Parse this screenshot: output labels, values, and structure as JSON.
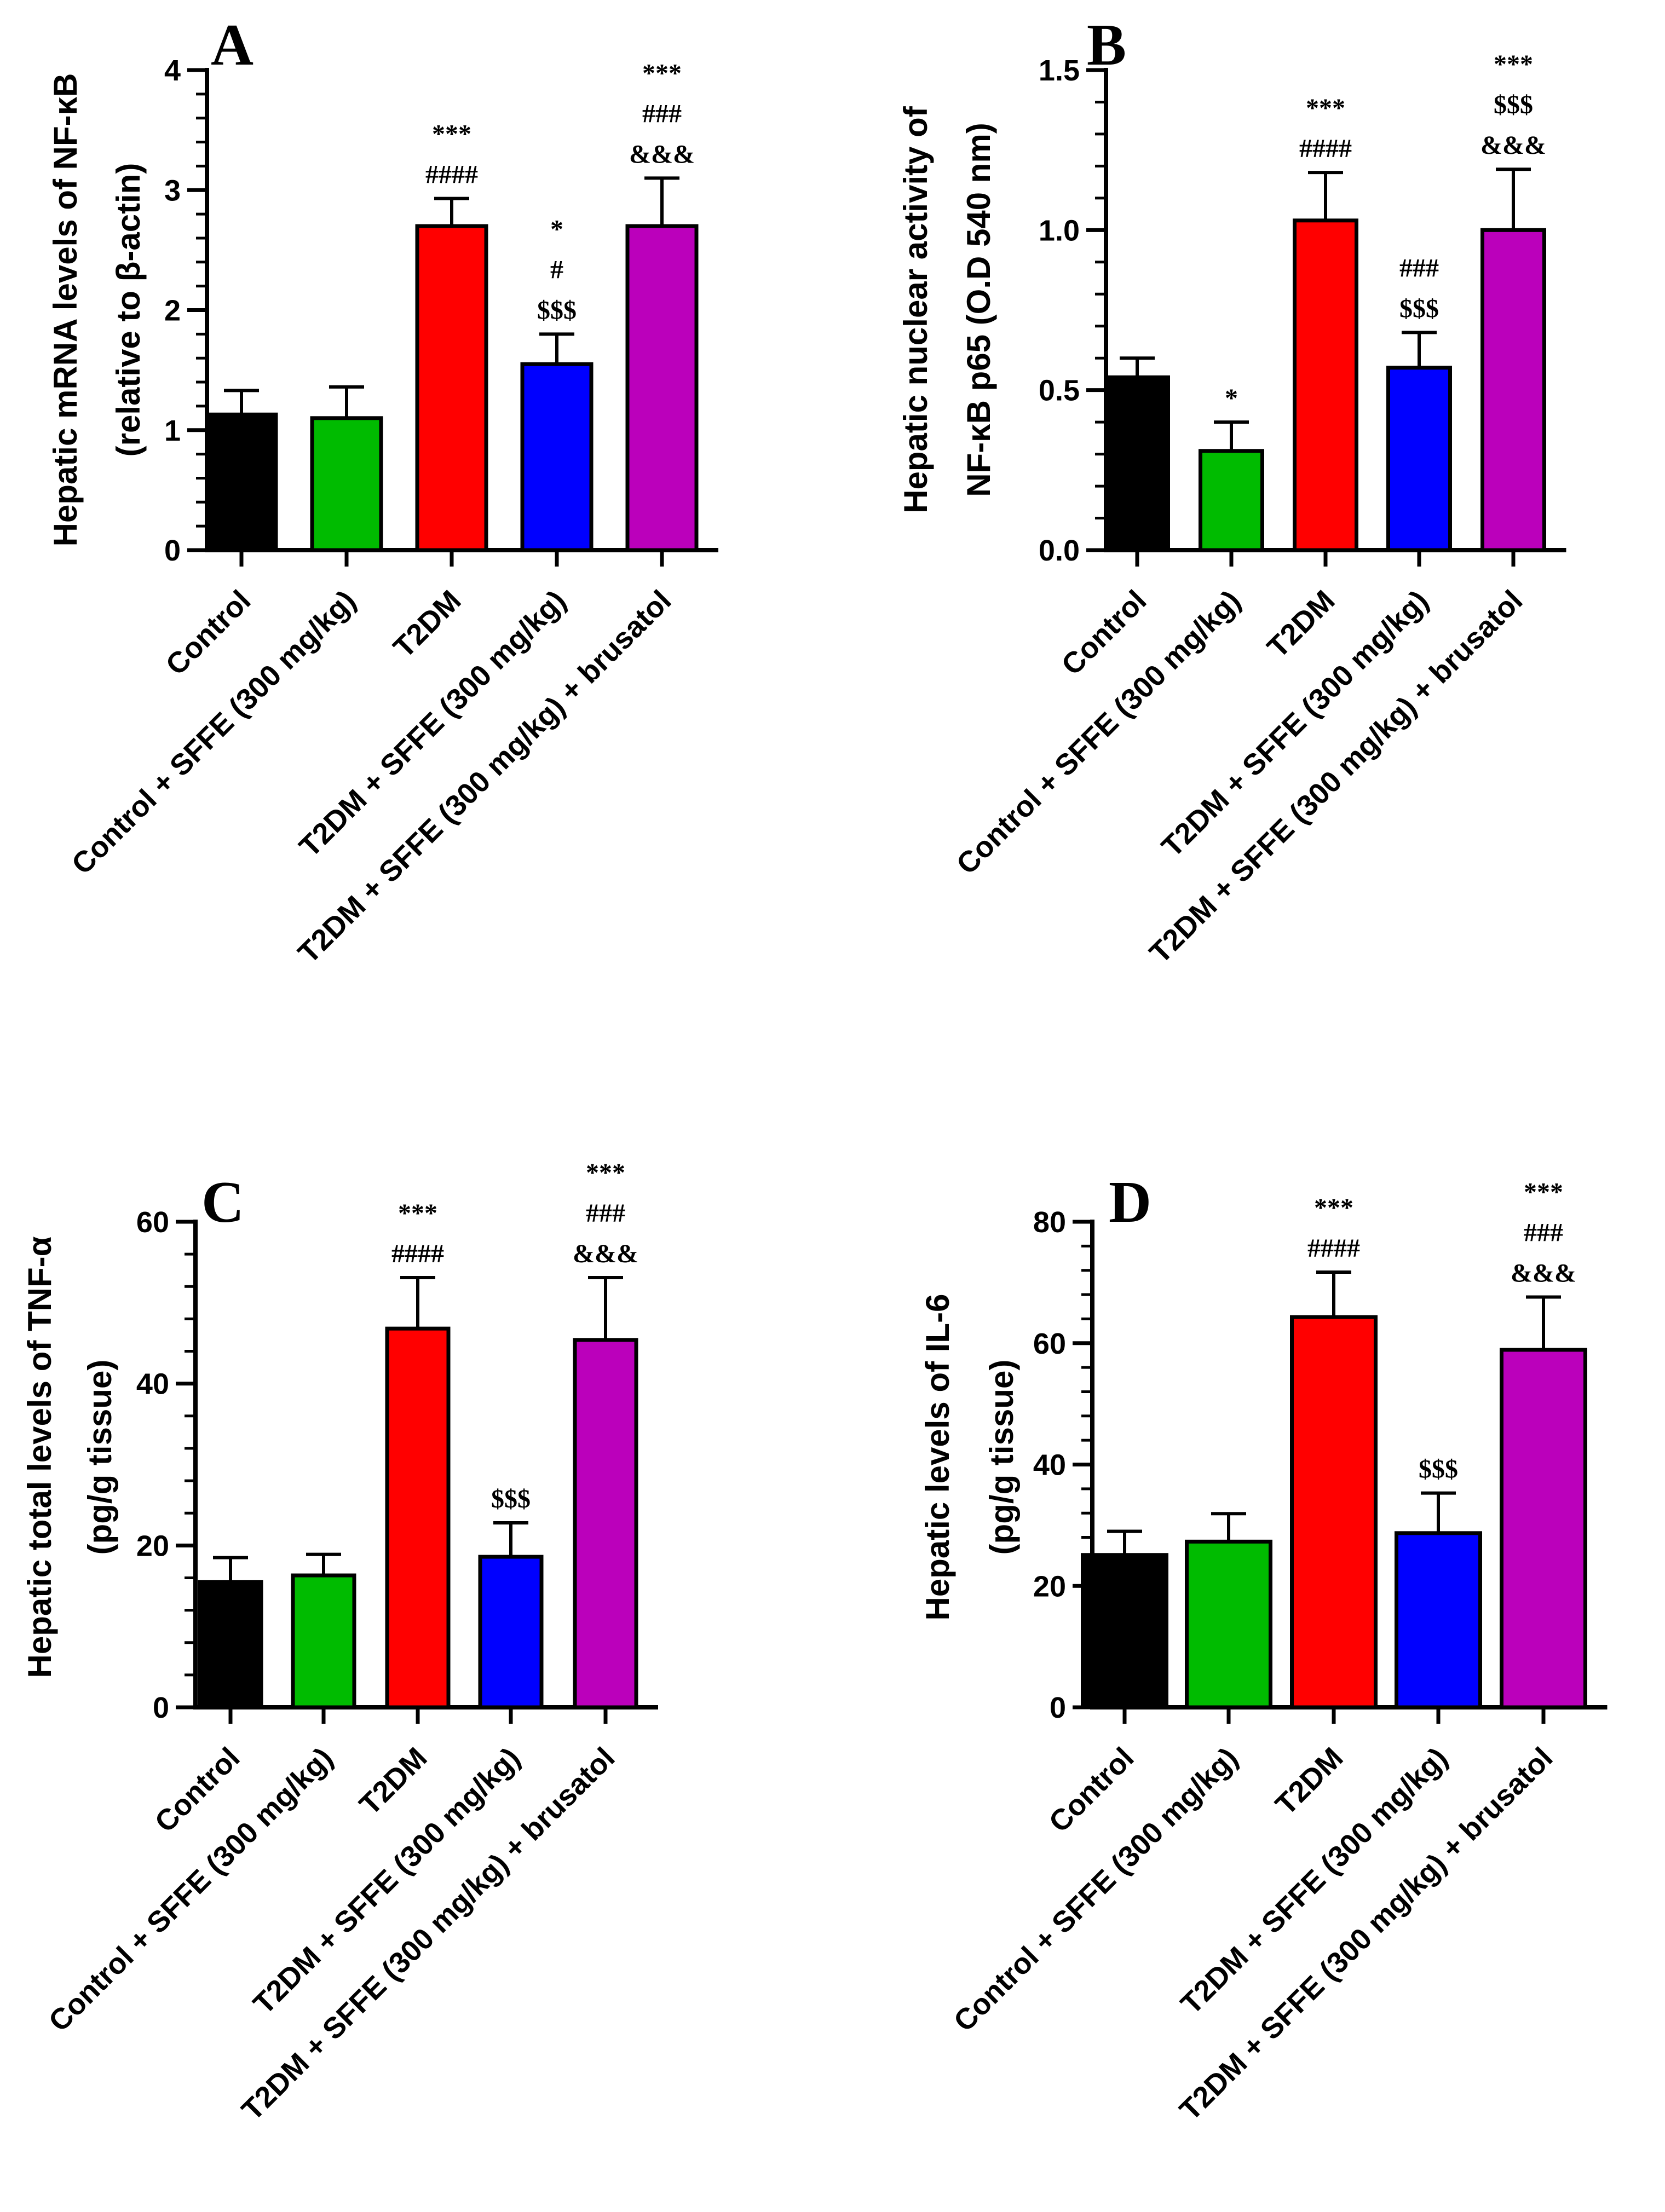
{
  "colors": {
    "control": "#000000",
    "control_sffe": "#00bb00",
    "t2dm": "#ff0000",
    "t2dm_sffe": "#0000ff",
    "t2dm_sffe_brusatol": "#bb00bb"
  },
  "chart_data": [
    {
      "panel": "A",
      "type": "bar",
      "ylabel_lines": [
        "Hepatic mRNA levels of NF-κB",
        "(relative to β-actin)"
      ],
      "ylim": [
        0,
        4
      ],
      "yticks": [
        "0",
        "1",
        "2",
        "3",
        "4"
      ],
      "ytick_values": [
        0,
        1,
        2,
        3,
        4
      ],
      "minor_step": 0.2,
      "categories": [
        "Control",
        "Control + SFFE (300 mg/kg)",
        "T2DM",
        "T2DM + SFFE (300 mg/kg)",
        "T2DM + SFFE (300 mg/kg) + brusatol"
      ],
      "values": [
        1.13,
        1.1,
        2.7,
        1.55,
        2.7
      ],
      "errors": [
        0.2,
        0.26,
        0.23,
        0.25,
        0.4
      ],
      "annotations": [
        [],
        [],
        [
          "***",
          "####"
        ],
        [
          "*",
          "#",
          "$$$"
        ],
        [
          "***",
          "###",
          "&&&"
        ]
      ]
    },
    {
      "panel": "B",
      "type": "bar",
      "ylabel_lines": [
        "Hepatic nuclear activity of",
        "NF-κB p65 (O.D 540 nm)"
      ],
      "ylim": [
        0,
        1.5
      ],
      "yticks": [
        "0.0",
        "0.5",
        "1.0",
        "1.5"
      ],
      "ytick_values": [
        0,
        0.5,
        1.0,
        1.5
      ],
      "minor_step": 0.1,
      "categories": [
        "Control",
        "Control + SFFE (300 mg/kg)",
        "T2DM",
        "T2DM + SFFE (300 mg/kg)",
        "T2DM + SFFE (300 mg/kg) + brusatol"
      ],
      "values": [
        0.54,
        0.31,
        1.03,
        0.57,
        1.0
      ],
      "errors": [
        0.06,
        0.09,
        0.15,
        0.11,
        0.19
      ],
      "annotations": [
        [],
        [
          "*"
        ],
        [
          "***",
          "####"
        ],
        [
          "###",
          "$$$"
        ],
        [
          "***",
          "$$$",
          "&&&"
        ]
      ]
    },
    {
      "panel": "C",
      "type": "bar",
      "ylabel_lines": [
        "Hepatic total levels of TNF-α",
        "(pg/g tissue)"
      ],
      "ylim": [
        0,
        60
      ],
      "yticks": [
        "0",
        "20",
        "40",
        "60"
      ],
      "ytick_values": [
        0,
        20,
        40,
        60
      ],
      "minor_step": 4,
      "categories": [
        "Control",
        "Control + SFFE (300 mg/kg)",
        "T2DM",
        "T2DM + SFFE (300 mg/kg)",
        "T2DM + SFFE (300 mg/kg) + brusatol"
      ],
      "values": [
        15.5,
        16.3,
        46.8,
        18.6,
        45.4
      ],
      "errors": [
        3.0,
        2.6,
        6.3,
        4.2,
        7.7
      ],
      "annotations": [
        [],
        [],
        [
          "***",
          "####"
        ],
        [
          "$$$"
        ],
        [
          "***",
          "###",
          "&&&"
        ]
      ]
    },
    {
      "panel": "D",
      "type": "bar",
      "ylabel_lines": [
        "Hepatic levels of IL-6",
        "(pg/g tissue)"
      ],
      "ylim": [
        0,
        80
      ],
      "yticks": [
        "0",
        "20",
        "40",
        "60",
        "80"
      ],
      "ytick_values": [
        0,
        20,
        40,
        60,
        80
      ],
      "minor_step": 4,
      "categories": [
        "Control",
        "Control + SFFE (300 mg/kg)",
        "T2DM",
        "T2DM + SFFE (300 mg/kg)",
        "T2DM + SFFE (300 mg/kg) + brusatol"
      ],
      "values": [
        25.1,
        27.3,
        64.3,
        28.7,
        58.9
      ],
      "errors": [
        3.9,
        4.6,
        7.4,
        6.6,
        8.7
      ],
      "annotations": [
        [],
        [],
        [
          "***",
          "####"
        ],
        [
          "$$$"
        ],
        [
          "***",
          "###",
          "&&&"
        ]
      ]
    }
  ]
}
